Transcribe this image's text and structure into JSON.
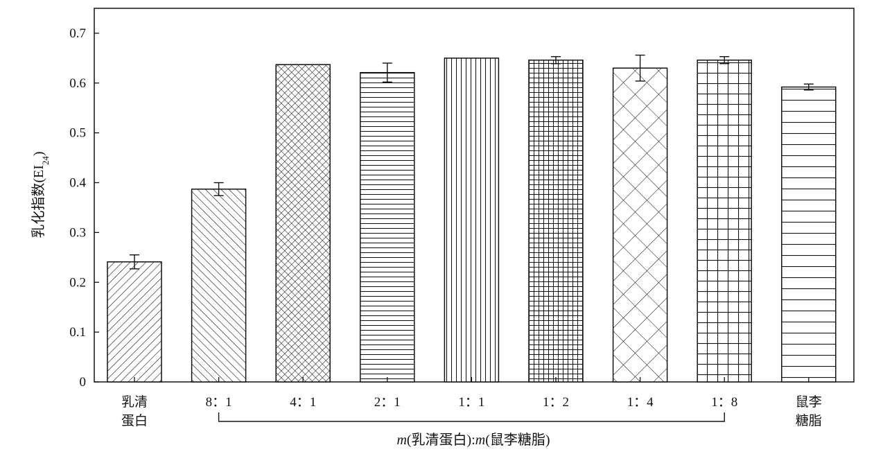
{
  "chart_data": {
    "type": "bar",
    "title": "",
    "ylabel": "乳化指数(EI",
    "ylabel_sub": "24",
    "ylabel_close": ")",
    "xlabel_m1": "m",
    "xlabel_part1": "(乳清蛋白):",
    "xlabel_m2": "m",
    "xlabel_part2": "(鼠李糖脂)",
    "ylim": [
      0,
      0.7
    ],
    "yticks": [
      "0",
      "0.1",
      "0.2",
      "0.3",
      "0.4",
      "0.5",
      "0.6",
      "0.7"
    ],
    "grid": false,
    "categories": [
      {
        "line1": "乳清",
        "line2": "蛋白"
      },
      {
        "line1": "8：1",
        "line2": ""
      },
      {
        "line1": "4：1",
        "line2": ""
      },
      {
        "line1": "2：1",
        "line2": ""
      },
      {
        "line1": "1：1",
        "line2": ""
      },
      {
        "line1": "1：2",
        "line2": ""
      },
      {
        "line1": "1：4",
        "line2": ""
      },
      {
        "line1": "1：8",
        "line2": ""
      },
      {
        "line1": "鼠李",
        "line2": "糖脂"
      }
    ],
    "values": [
      0.241,
      0.387,
      0.637,
      0.621,
      0.65,
      0.646,
      0.63,
      0.646,
      0.592
    ],
    "errors": [
      0.014,
      0.013,
      0.0,
      0.019,
      0.0,
      0.007,
      0.026,
      0.007,
      0.006
    ],
    "patterns": [
      "diag-fwd",
      "diag-back",
      "crosshatch-fine",
      "horiz-fine",
      "vert-fine",
      "grid-fine",
      "crosshatch-wide",
      "grid-wide",
      "horiz-wide"
    ],
    "bracket_from": 1,
    "bracket_to": 7
  }
}
